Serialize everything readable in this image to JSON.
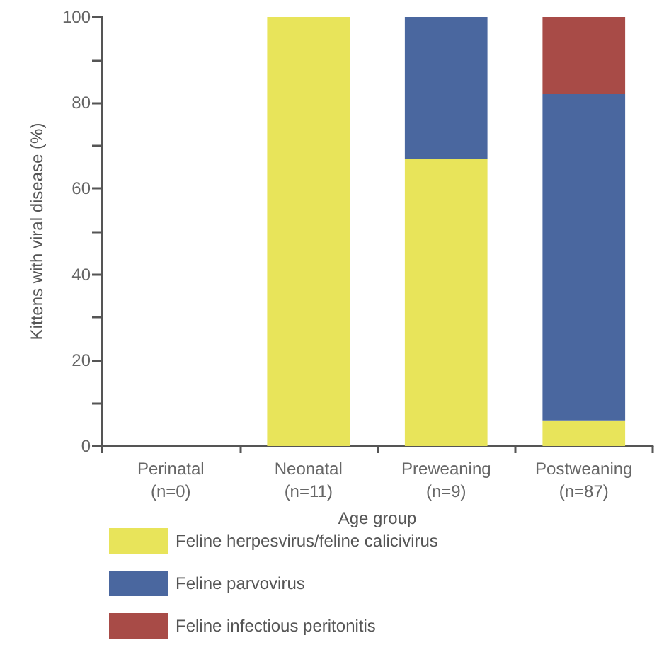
{
  "chart_data": {
    "type": "bar",
    "stacked": true,
    "xlabel": "Age group",
    "ylabel": "Kittens with viral disease (%)",
    "categories": [
      "Perinatal\n(n=0)",
      "Neonatal\n(n=11)",
      "Preweaning\n(n=9)",
      "Postweaning\n(n=87)"
    ],
    "series": [
      {
        "name": "Feline herpesvirus/feline calicivirus",
        "color": "#e8e45a",
        "values": [
          0,
          100,
          67,
          6
        ]
      },
      {
        "name": "Feline parvovirus",
        "color": "#4a679f",
        "values": [
          0,
          0,
          33,
          76
        ]
      },
      {
        "name": "Feline infectious peritonitis",
        "color": "#a84b47",
        "values": [
          0,
          0,
          0,
          18
        ]
      }
    ],
    "ylim": [
      0,
      100
    ],
    "yticks": [
      0,
      {
        "value": 10,
        "label": null
      },
      20,
      {
        "value": 30,
        "label": null
      },
      40,
      {
        "value": 50,
        "label": null
      },
      60,
      {
        "value": 70,
        "label": null
      },
      80,
      {
        "value": 90,
        "label": null
      },
      100
    ],
    "grid": false,
    "legend": "bottom"
  }
}
